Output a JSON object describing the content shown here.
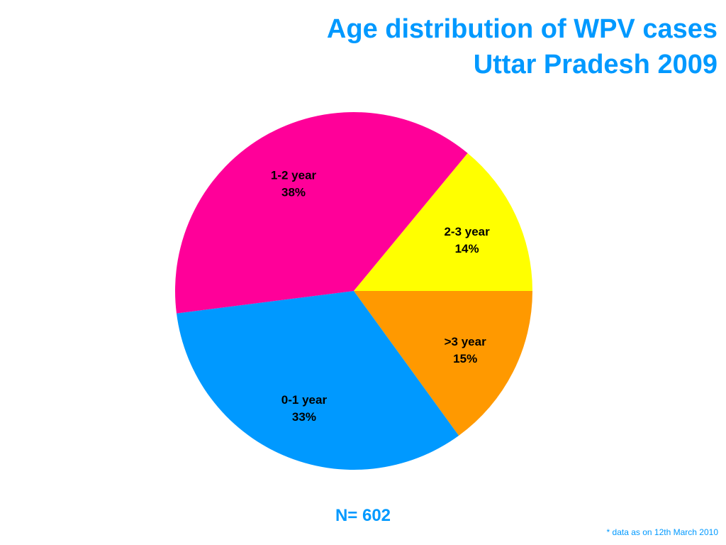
{
  "title_line1": "Age distribution of WPV cases",
  "title_line2": "Uttar Pradesh 2009",
  "n_label": "N= 602",
  "footnote": "* data as on 12th March 2010",
  "chart_data": {
    "type": "pie",
    "title": "Age distribution of WPV cases Uttar Pradesh 2009",
    "legend": "none",
    "categories": [
      ">3 year",
      "0-1 year",
      "1-2 year",
      "2-3 year"
    ],
    "values": [
      15,
      33,
      38,
      14
    ],
    "value_labels": [
      "15%",
      "33%",
      "38%",
      "14%"
    ],
    "colors": [
      "#ff9900",
      "#0099ff",
      "#ff0099",
      "#ffff00"
    ],
    "start_angle_deg": 0,
    "direction": "clockwise"
  }
}
